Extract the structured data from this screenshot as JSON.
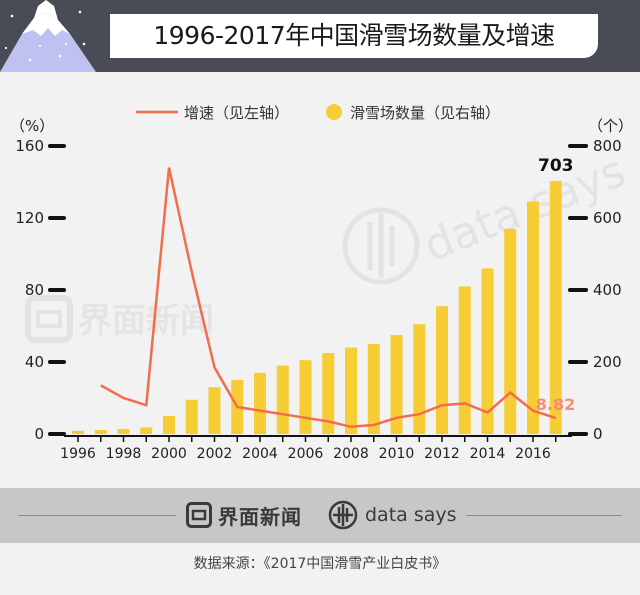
{
  "header": {
    "title": "1996-2017年中国滑雪场数量及增速"
  },
  "chart_data": {
    "type": "bar+line",
    "title": "1996-2017年中国滑雪场数量及增速",
    "legend": {
      "position": "top-center",
      "line_label": "增速（见左轴）",
      "bar_label": "滑雪场数量（见右轴）"
    },
    "left_axis": {
      "unit": "（%）",
      "ticks": [
        "0",
        "40",
        "80",
        "120",
        "160"
      ],
      "ylim": [
        0,
        160
      ]
    },
    "right_axis": {
      "unit": "（个）",
      "ticks": [
        "0",
        "200",
        "400",
        "600",
        "800"
      ],
      "ylim": [
        0,
        800
      ]
    },
    "x_ticks": [
      "1996",
      "1998",
      "2000",
      "2002",
      "2004",
      "2006",
      "2008",
      "2010",
      "2012",
      "2014",
      "2016"
    ],
    "years": [
      1996,
      1997,
      1998,
      1999,
      2000,
      2001,
      2002,
      2003,
      2004,
      2005,
      2006,
      2007,
      2008,
      2009,
      2010,
      2011,
      2012,
      2013,
      2014,
      2015,
      2016,
      2017
    ],
    "series": [
      {
        "name": "滑雪场数量（见右轴）",
        "type": "bar",
        "color": "#f6cd34",
        "values": [
          9,
          11,
          14,
          18,
          50,
          95,
          130,
          150,
          170,
          190,
          205,
          225,
          240,
          250,
          275,
          305,
          355,
          410,
          460,
          570,
          646,
          703
        ]
      },
      {
        "name": "增速（见左轴）",
        "type": "line",
        "color": "#f26d4b",
        "values": [
          null,
          27,
          20,
          16,
          148,
          90,
          37,
          15,
          13,
          11,
          9,
          7,
          4,
          5,
          9,
          11,
          16,
          17,
          12,
          23,
          13,
          8.82
        ]
      }
    ],
    "annotations": {
      "bar_last": "703",
      "line_last": "8.82"
    },
    "grid": false
  },
  "watermarks": {
    "jiemian": "界面新闻",
    "datasays": "data says"
  },
  "footer": {
    "logo_jiemian": "界面新闻",
    "logo_datasays": "data says",
    "source": "数据来源：《2017中国滑雪产业白皮书》"
  },
  "colors": {
    "header_bg": "#4a4c55",
    "bar": "#f6cd34",
    "line": "#f26d4b",
    "page_bg": "#f2f2f2"
  }
}
